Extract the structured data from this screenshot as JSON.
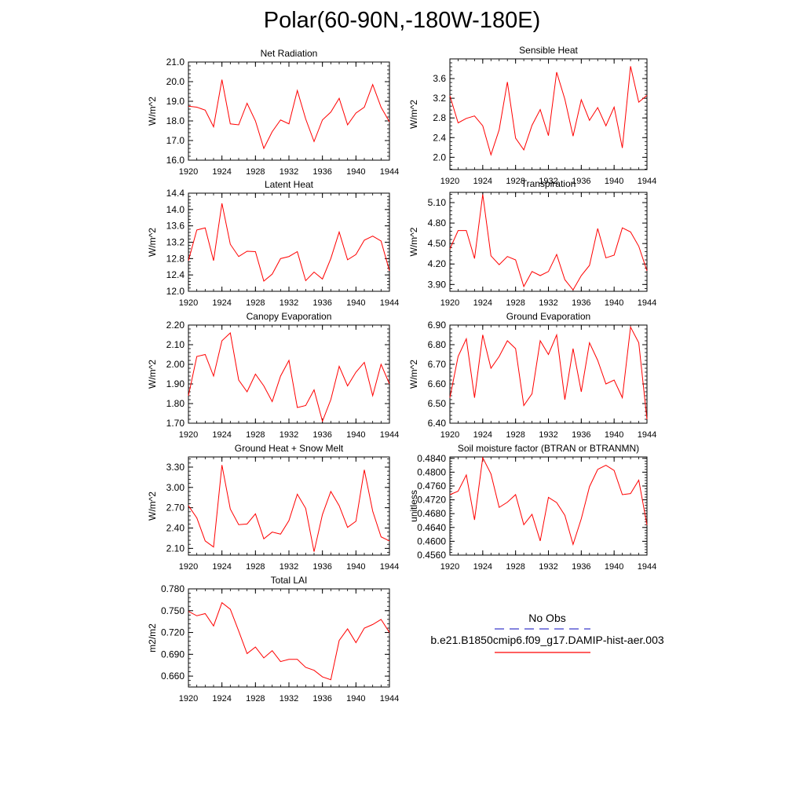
{
  "title": "Polar(60-90N,-180W-180E)",
  "line_color": "#ff0000",
  "obs_color": "#3a3acb",
  "legend": {
    "obs_label": "No Obs",
    "model_label": "b.e21.B1850cmip6.f09_g17.DAMIP-hist-aer.003"
  },
  "chart_data": [
    {
      "type": "line",
      "title": "Net Radiation",
      "ylabel": "W/m^2",
      "x": [
        1920,
        1921,
        1922,
        1923,
        1924,
        1925,
        1926,
        1927,
        1928,
        1929,
        1930,
        1931,
        1932,
        1933,
        1934,
        1935,
        1936,
        1937,
        1938,
        1939,
        1940,
        1941,
        1942,
        1943,
        1944
      ],
      "xticks": [
        "1920",
        "1924",
        "1928",
        "1932",
        "1936",
        "1940",
        "1944"
      ],
      "yticks": [
        "16.0",
        "17.0",
        "18.0",
        "19.0",
        "20.0",
        "21.0"
      ],
      "ylim": [
        16.0,
        21.0
      ],
      "series": [
        {
          "values": [
            18.75,
            18.7,
            18.55,
            17.7,
            20.1,
            17.85,
            17.8,
            18.9,
            18.0,
            16.6,
            17.45,
            18.05,
            17.85,
            19.55,
            18.1,
            16.95,
            18.05,
            18.45,
            19.15,
            17.8,
            18.4,
            18.7,
            19.85,
            18.7,
            17.95
          ]
        }
      ]
    },
    {
      "type": "line",
      "title": "Sensible Heat",
      "ylabel": "W/m^2",
      "x": [
        1920,
        1921,
        1922,
        1923,
        1924,
        1925,
        1926,
        1927,
        1928,
        1929,
        1930,
        1931,
        1932,
        1933,
        1934,
        1935,
        1936,
        1937,
        1938,
        1939,
        1940,
        1941,
        1942,
        1943,
        1944
      ],
      "xticks": [
        "1920",
        "1924",
        "1928",
        "1932",
        "1936",
        "1940",
        "1944"
      ],
      "yticks": [
        "2.0",
        "2.4",
        "2.8",
        "3.2",
        "3.6"
      ],
      "ylim": [
        1.75,
        4.0
      ],
      "series": [
        {
          "values": [
            3.25,
            2.7,
            2.79,
            2.84,
            2.64,
            2.05,
            2.56,
            3.53,
            2.39,
            2.15,
            2.65,
            2.97,
            2.44,
            3.73,
            3.18,
            2.43,
            3.17,
            2.75,
            3.01,
            2.64,
            3.02,
            2.19,
            3.85,
            3.12,
            3.26
          ]
        }
      ]
    },
    {
      "type": "line",
      "title": "Latent Heat",
      "ylabel": "W/m^2",
      "x": [
        1920,
        1921,
        1922,
        1923,
        1924,
        1925,
        1926,
        1927,
        1928,
        1929,
        1930,
        1931,
        1932,
        1933,
        1934,
        1935,
        1936,
        1937,
        1938,
        1939,
        1940,
        1941,
        1942,
        1943,
        1944
      ],
      "xticks": [
        "1920",
        "1924",
        "1928",
        "1932",
        "1936",
        "1940",
        "1944"
      ],
      "yticks": [
        "12.0",
        "12.4",
        "12.8",
        "13.2",
        "13.6",
        "14.0",
        "14.4"
      ],
      "ylim": [
        12.0,
        14.4
      ],
      "series": [
        {
          "values": [
            12.75,
            13.5,
            13.55,
            12.75,
            14.15,
            13.15,
            12.85,
            12.98,
            12.97,
            12.25,
            12.42,
            12.8,
            12.85,
            12.97,
            12.26,
            12.47,
            12.3,
            12.8,
            13.45,
            12.77,
            12.9,
            13.25,
            13.35,
            13.23,
            12.5
          ]
        }
      ]
    },
    {
      "type": "line",
      "title": "Transpiration",
      "ylabel": "W/m^2",
      "x": [
        1920,
        1921,
        1922,
        1923,
        1924,
        1925,
        1926,
        1927,
        1928,
        1929,
        1930,
        1931,
        1932,
        1933,
        1934,
        1935,
        1936,
        1937,
        1938,
        1939,
        1940,
        1941,
        1942,
        1943,
        1944
      ],
      "xticks": [
        "1920",
        "1924",
        "1928",
        "1932",
        "1936",
        "1940",
        "1944"
      ],
      "yticks": [
        "3.90",
        "4.20",
        "4.50",
        "4.80",
        "5.10"
      ],
      "ylim": [
        3.8,
        5.25
      ],
      "series": [
        {
          "values": [
            4.42,
            4.69,
            4.69,
            4.28,
            5.22,
            4.32,
            4.19,
            4.31,
            4.26,
            3.87,
            4.09,
            4.03,
            4.09,
            4.34,
            3.97,
            3.82,
            4.03,
            4.18,
            4.72,
            4.29,
            4.33,
            4.73,
            4.67,
            4.46,
            4.1
          ]
        }
      ]
    },
    {
      "type": "line",
      "title": "Canopy Evaporation",
      "ylabel": "W/m^2",
      "x": [
        1920,
        1921,
        1922,
        1923,
        1924,
        1925,
        1926,
        1927,
        1928,
        1929,
        1930,
        1931,
        1932,
        1933,
        1934,
        1935,
        1936,
        1937,
        1938,
        1939,
        1940,
        1941,
        1942,
        1943,
        1944
      ],
      "xticks": [
        "1920",
        "1924",
        "1928",
        "1932",
        "1936",
        "1940",
        "1944"
      ],
      "yticks": [
        "1.70",
        "1.80",
        "1.90",
        "2.00",
        "2.10",
        "2.20"
      ],
      "ylim": [
        1.7,
        2.2
      ],
      "series": [
        {
          "values": [
            1.84,
            2.04,
            2.05,
            1.94,
            2.12,
            2.16,
            1.92,
            1.86,
            1.95,
            1.89,
            1.81,
            1.94,
            2.02,
            1.78,
            1.79,
            1.87,
            1.71,
            1.82,
            1.99,
            1.89,
            1.96,
            2.01,
            1.84,
            2.0,
            1.9
          ]
        }
      ]
    },
    {
      "type": "line",
      "title": "Ground Evaporation",
      "ylabel": "W/m^2",
      "x": [
        1920,
        1921,
        1922,
        1923,
        1924,
        1925,
        1926,
        1927,
        1928,
        1929,
        1930,
        1931,
        1932,
        1933,
        1934,
        1935,
        1936,
        1937,
        1938,
        1939,
        1940,
        1941,
        1942,
        1943,
        1944
      ],
      "xticks": [
        "1920",
        "1924",
        "1928",
        "1932",
        "1936",
        "1940",
        "1944"
      ],
      "yticks": [
        "6.40",
        "6.50",
        "6.60",
        "6.70",
        "6.80",
        "6.90"
      ],
      "ylim": [
        6.4,
        6.9
      ],
      "series": [
        {
          "values": [
            6.53,
            6.74,
            6.83,
            6.53,
            6.85,
            6.68,
            6.74,
            6.82,
            6.78,
            6.49,
            6.55,
            6.82,
            6.75,
            6.85,
            6.52,
            6.78,
            6.56,
            6.81,
            6.72,
            6.6,
            6.62,
            6.53,
            6.89,
            6.81,
            6.42
          ]
        }
      ]
    },
    {
      "type": "line",
      "title": "Ground Heat + Snow Melt",
      "ylabel": "W/m^2",
      "x": [
        1920,
        1921,
        1922,
        1923,
        1924,
        1925,
        1926,
        1927,
        1928,
        1929,
        1930,
        1931,
        1932,
        1933,
        1934,
        1935,
        1936,
        1937,
        1938,
        1939,
        1940,
        1941,
        1942,
        1943,
        1944
      ],
      "xticks": [
        "1920",
        "1924",
        "1928",
        "1932",
        "1936",
        "1940",
        "1944"
      ],
      "yticks": [
        "2.10",
        "2.40",
        "2.70",
        "3.00",
        "3.30"
      ],
      "ylim": [
        2.0,
        3.45
      ],
      "series": [
        {
          "values": [
            2.73,
            2.55,
            2.21,
            2.12,
            3.33,
            2.68,
            2.45,
            2.46,
            2.61,
            2.24,
            2.34,
            2.31,
            2.51,
            2.9,
            2.69,
            2.05,
            2.6,
            2.94,
            2.73,
            2.41,
            2.5,
            3.26,
            2.65,
            2.27,
            2.21
          ]
        }
      ]
    },
    {
      "type": "line",
      "title": "Soil moisture factor (BTRAN or BTRANMN)",
      "ylabel": "unitless",
      "x": [
        1920,
        1921,
        1922,
        1923,
        1924,
        1925,
        1926,
        1927,
        1928,
        1929,
        1930,
        1931,
        1932,
        1933,
        1934,
        1935,
        1936,
        1937,
        1938,
        1939,
        1940,
        1941,
        1942,
        1943,
        1944
      ],
      "xticks": [
        "1920",
        "1924",
        "1928",
        "1932",
        "1936",
        "1940",
        "1944"
      ],
      "yticks": [
        "0.4560",
        "0.4600",
        "0.4640",
        "0.4680",
        "0.4720",
        "0.4760",
        "0.4800",
        "0.4840"
      ],
      "ylim": [
        0.456,
        0.4844
      ],
      "series": [
        {
          "values": [
            0.4735,
            0.4745,
            0.4792,
            0.4662,
            0.4842,
            0.4795,
            0.4698,
            0.4713,
            0.4735,
            0.4648,
            0.4678,
            0.4601,
            0.4727,
            0.4712,
            0.4675,
            0.4591,
            0.4665,
            0.4758,
            0.4808,
            0.482,
            0.4805,
            0.4735,
            0.4738,
            0.4777,
            0.4647
          ]
        }
      ]
    },
    {
      "type": "line",
      "title": "Total LAI",
      "ylabel": "m2/m2",
      "x": [
        1920,
        1921,
        1922,
        1923,
        1924,
        1925,
        1926,
        1927,
        1928,
        1929,
        1930,
        1931,
        1932,
        1933,
        1934,
        1935,
        1936,
        1937,
        1938,
        1939,
        1940,
        1941,
        1942,
        1943,
        1944
      ],
      "xticks": [
        "1920",
        "1924",
        "1928",
        "1932",
        "1936",
        "1940",
        "1944"
      ],
      "yticks": [
        "0.660",
        "0.690",
        "0.720",
        "0.750",
        "0.780"
      ],
      "ylim": [
        0.645,
        0.78
      ],
      "series": [
        {
          "values": [
            0.749,
            0.743,
            0.746,
            0.729,
            0.761,
            0.752,
            0.722,
            0.691,
            0.7,
            0.685,
            0.695,
            0.68,
            0.683,
            0.683,
            0.672,
            0.668,
            0.659,
            0.655,
            0.709,
            0.725,
            0.706,
            0.726,
            0.731,
            0.738,
            0.72
          ]
        }
      ]
    }
  ]
}
